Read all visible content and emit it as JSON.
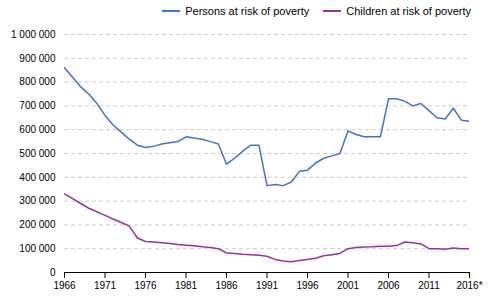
{
  "chart_data": {
    "type": "line",
    "x": [
      1966,
      1967,
      1968,
      1969,
      1970,
      1971,
      1972,
      1973,
      1974,
      1975,
      1976,
      1977,
      1978,
      1979,
      1980,
      1981,
      1982,
      1983,
      1984,
      1985,
      1986,
      1987,
      1988,
      1989,
      1990,
      1991,
      1992,
      1993,
      1994,
      1995,
      1996,
      1997,
      1998,
      1999,
      2000,
      2001,
      2002,
      2003,
      2004,
      2005,
      2006,
      2007,
      2008,
      2009,
      2010,
      2011,
      2012,
      2013,
      2014,
      2015,
      2016
    ],
    "series": [
      {
        "name": "Persons at risk of poverty",
        "color": "#4472C4",
        "values": [
          860000,
          820000,
          780000,
          750000,
          710000,
          660000,
          620000,
          590000,
          560000,
          535000,
          525000,
          530000,
          540000,
          545000,
          550000,
          570000,
          565000,
          560000,
          550000,
          540000,
          455000,
          480000,
          510000,
          535000,
          535000,
          365000,
          370000,
          365000,
          380000,
          425000,
          430000,
          460000,
          480000,
          490000,
          500000,
          595000,
          580000,
          570000,
          570000,
          570000,
          730000,
          730000,
          720000,
          700000,
          710000,
          680000,
          650000,
          645000,
          690000,
          640000,
          635000
        ]
      },
      {
        "name": "Children at risk of poverty",
        "color": "#993399",
        "values": [
          330000,
          310000,
          290000,
          270000,
          255000,
          240000,
          225000,
          210000,
          195000,
          145000,
          130000,
          128000,
          125000,
          122000,
          118000,
          115000,
          112000,
          108000,
          105000,
          100000,
          82000,
          80000,
          77000,
          75000,
          72000,
          68000,
          55000,
          48000,
          45000,
          50000,
          55000,
          60000,
          70000,
          75000,
          80000,
          100000,
          105000,
          107000,
          108000,
          110000,
          110000,
          113000,
          128000,
          125000,
          120000,
          100000,
          100000,
          98000,
          103000,
          100000,
          100000
        ]
      }
    ],
    "xlim": [
      1966,
      2016
    ],
    "xticks": [
      1966,
      1971,
      1976,
      1981,
      1986,
      1991,
      1996,
      2001,
      2006,
      2011,
      {
        "value": 2016,
        "label": "2016*"
      }
    ],
    "ylim": [
      0,
      1000000
    ],
    "yticks": [
      0,
      {
        "value": 100000,
        "label": "100 000"
      },
      {
        "value": 200000,
        "label": "200 000"
      },
      {
        "value": 300000,
        "label": "300 000"
      },
      {
        "value": 400000,
        "label": "400 000"
      },
      {
        "value": 500000,
        "label": "500 000"
      },
      {
        "value": 600000,
        "label": "600 000"
      },
      {
        "value": 700000,
        "label": "700 000"
      },
      {
        "value": 800000,
        "label": "800 000"
      },
      {
        "value": 900000,
        "label": "900 000"
      },
      {
        "value": 1000000,
        "label": "1 000 000"
      }
    ],
    "grid": true,
    "legend": "upper right"
  }
}
